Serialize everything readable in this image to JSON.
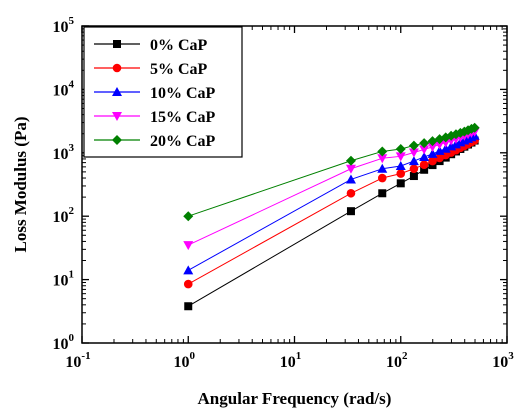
{
  "chart_data": {
    "type": "scatter",
    "title": "",
    "xlabel": "Angular Frequency (rad/s)",
    "ylabel": "Loss Modulus (Pa)",
    "x_scale": "log",
    "y_scale": "log",
    "xlim": [
      0.1,
      1000
    ],
    "ylim": [
      1,
      100000
    ],
    "x_ticks": [
      {
        "base": "10",
        "exp": "-1",
        "value": 0.1
      },
      {
        "base": "10",
        "exp": "0",
        "value": 1
      },
      {
        "base": "10",
        "exp": "1",
        "value": 10
      },
      {
        "base": "10",
        "exp": "2",
        "value": 100
      },
      {
        "base": "10",
        "exp": "3",
        "value": 1000
      }
    ],
    "y_ticks": [
      {
        "base": "10",
        "exp": "0",
        "value": 1
      },
      {
        "base": "10",
        "exp": "1",
        "value": 10
      },
      {
        "base": "10",
        "exp": "2",
        "value": 100
      },
      {
        "base": "10",
        "exp": "3",
        "value": 1000
      },
      {
        "base": "10",
        "exp": "4",
        "value": 10000
      },
      {
        "base": "10",
        "exp": "5",
        "value": 100000
      }
    ],
    "grid": false,
    "legend_position": "top-left",
    "x": [
      1,
      34,
      67,
      100,
      133,
      166,
      199,
      232,
      265,
      298,
      331,
      364,
      397,
      430,
      463,
      496
    ],
    "series": [
      {
        "name": "0% CaP",
        "color": "#000000",
        "marker": "square",
        "values": [
          3.8,
          120,
          230,
          330,
          430,
          540,
          640,
          740,
          840,
          950,
          1050,
          1150,
          1250,
          1350,
          1450,
          1560
        ]
      },
      {
        "name": "5% CaP",
        "color": "#ff0000",
        "marker": "circle",
        "values": [
          8.5,
          230,
          400,
          470,
          560,
          650,
          740,
          830,
          920,
          1010,
          1100,
          1200,
          1290,
          1380,
          1480,
          1570
        ]
      },
      {
        "name": "10% CaP",
        "color": "#0000ff",
        "marker": "triangle-up",
        "values": [
          14,
          380,
          560,
          620,
          740,
          860,
          960,
          1070,
          1160,
          1260,
          1360,
          1460,
          1560,
          1660,
          1760,
          1860
        ]
      },
      {
        "name": "15% CaP",
        "color": "#ff00ff",
        "marker": "triangle-down",
        "values": [
          35,
          560,
          820,
          880,
          1010,
          1130,
          1240,
          1350,
          1450,
          1560,
          1660,
          1760,
          1860,
          1960,
          2060,
          2150
        ]
      },
      {
        "name": "20% CaP",
        "color": "#008000",
        "marker": "diamond",
        "values": [
          100,
          750,
          1050,
          1150,
          1300,
          1420,
          1530,
          1640,
          1750,
          1860,
          1960,
          2060,
          2160,
          2270,
          2380,
          2480
        ]
      }
    ]
  }
}
